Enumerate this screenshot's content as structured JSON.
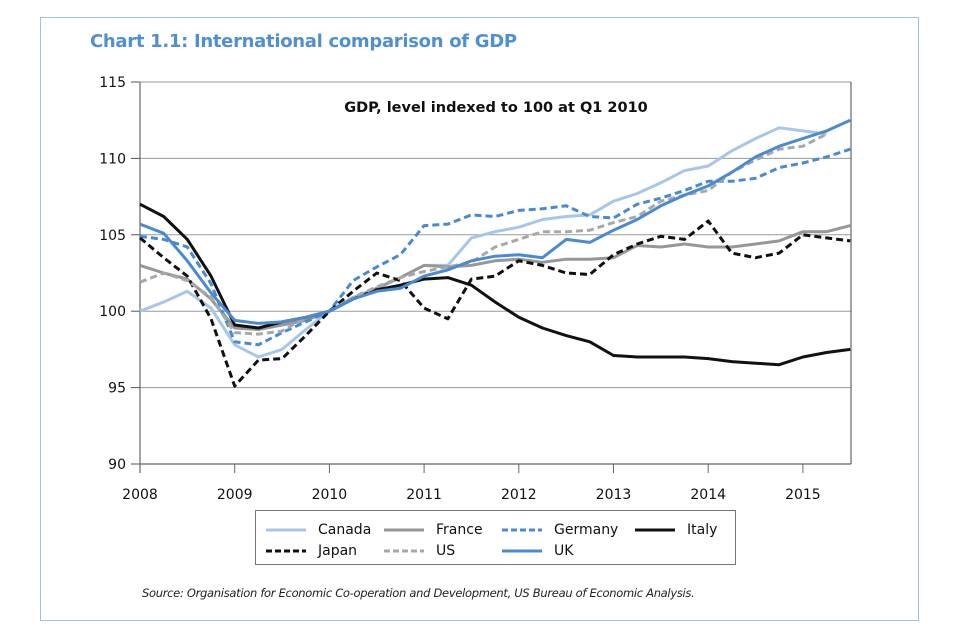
{
  "chart_data": {
    "type": "line",
    "title": "Chart 1.1: International comparison of GDP",
    "subtitle": "GDP, level indexed to 100 at Q1 2010",
    "xlabel": "",
    "ylabel": "",
    "x_start": 2008.0,
    "x_step": 0.25,
    "xlim": [
      2008,
      2015.5
    ],
    "ylim": [
      90,
      115
    ],
    "xticks": [
      2008,
      2009,
      2010,
      2011,
      2012,
      2013,
      2014,
      2015
    ],
    "xtick_labels": [
      "2008",
      "2009",
      "2010",
      "2011",
      "2012",
      "2013",
      "2014",
      "2015"
    ],
    "yticks": [
      90,
      95,
      100,
      105,
      110,
      115
    ],
    "ytick_labels": [
      "90",
      "95",
      "100",
      "105",
      "110",
      "115"
    ],
    "grid": "horizontal",
    "legend_position": "bottom",
    "series": [
      {
        "name": "Canada",
        "color": "#a7c6ea",
        "dash": "solid",
        "values": [
          100.0,
          100.6,
          101.3,
          100.2,
          97.8,
          97.0,
          97.5,
          98.8,
          100.0,
          100.9,
          101.5,
          102.2,
          103.0,
          103.0,
          104.8,
          105.2,
          105.5,
          106.0,
          106.2,
          106.3,
          107.2,
          107.7,
          108.4,
          109.2,
          109.5,
          110.5,
          111.3,
          112.0,
          111.8,
          111.6,
          null
        ]
      },
      {
        "name": "France",
        "color": "#979797",
        "dash": "solid",
        "values": [
          103.0,
          102.5,
          102.1,
          100.8,
          98.9,
          98.8,
          99.1,
          99.4,
          100.0,
          100.8,
          101.5,
          102.2,
          103.0,
          102.9,
          103.0,
          103.3,
          103.4,
          103.2,
          103.4,
          103.4,
          103.5,
          104.3,
          104.2,
          104.4,
          104.2,
          104.2,
          104.4,
          104.6,
          105.2,
          105.2,
          105.6
        ]
      },
      {
        "name": "Germany",
        "color": "#4a8ad2",
        "dash": "dashed",
        "values": [
          104.9,
          104.7,
          104.2,
          101.8,
          98.0,
          97.8,
          98.6,
          99.3,
          100.0,
          102.0,
          102.9,
          103.7,
          105.6,
          105.7,
          106.3,
          106.2,
          106.6,
          106.7,
          106.9,
          106.2,
          106.1,
          107.0,
          107.4,
          107.9,
          108.5,
          108.5,
          108.7,
          109.4,
          109.7,
          110.1,
          110.6
        ]
      },
      {
        "name": "Italy",
        "color": "#111111",
        "dash": "solid",
        "values": [
          107.0,
          106.2,
          104.7,
          102.3,
          99.1,
          98.9,
          99.3,
          99.6,
          100.0,
          100.8,
          101.4,
          101.7,
          102.1,
          102.2,
          101.7,
          100.6,
          99.6,
          98.9,
          98.4,
          98.0,
          97.1,
          97.0,
          97.0,
          97.0,
          96.9,
          96.7,
          96.6,
          96.5,
          97.0,
          97.3,
          97.5
        ]
      },
      {
        "name": "Japan",
        "color": "#111111",
        "dash": "dashed",
        "values": [
          104.8,
          103.5,
          102.3,
          99.5,
          95.1,
          96.8,
          96.9,
          98.4,
          100.0,
          101.3,
          102.5,
          102.0,
          100.2,
          99.5,
          102.1,
          102.3,
          103.3,
          103.0,
          102.5,
          102.4,
          103.7,
          104.4,
          104.9,
          104.7,
          105.9,
          103.8,
          103.5,
          103.8,
          105.0,
          104.8,
          104.6
        ]
      },
      {
        "name": "US",
        "color": "#a8a8a8",
        "dash": "dashed",
        "values": [
          101.9,
          102.5,
          102.0,
          100.9,
          98.6,
          98.5,
          98.7,
          99.6,
          100.0,
          100.9,
          101.6,
          102.2,
          102.6,
          102.9,
          103.2,
          104.2,
          104.7,
          105.2,
          105.2,
          105.3,
          105.8,
          106.2,
          107.2,
          107.6,
          107.9,
          109.1,
          109.9,
          110.6,
          110.8,
          111.6,
          null
        ]
      },
      {
        "name": "UK",
        "color": "#4a8ad2",
        "dash": "solid",
        "values": [
          105.7,
          105.1,
          103.3,
          101.2,
          99.4,
          99.2,
          99.3,
          99.6,
          100.0,
          100.8,
          101.3,
          101.5,
          102.3,
          102.7,
          103.3,
          103.6,
          103.7,
          103.5,
          104.7,
          104.5,
          105.3,
          106.0,
          106.9,
          107.6,
          108.2,
          109.1,
          110.1,
          110.8,
          111.3,
          111.8,
          112.5
        ]
      }
    ]
  },
  "source_note": "Source: Organisation for Economic Co-operation and Development, US Bureau of Economic Analysis."
}
